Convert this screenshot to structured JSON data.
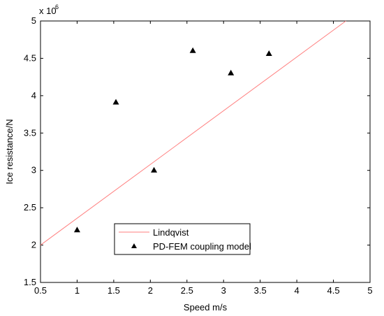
{
  "chart_data": {
    "type": "scatter",
    "title": "",
    "xlabel": "Speed m/s",
    "ylabel": "Ice resistance/N",
    "y_multiplier_label": "x 10",
    "y_multiplier_exponent": "6",
    "xlim": [
      0.5,
      5
    ],
    "ylim": [
      1.5,
      5
    ],
    "x_ticks": [
      0.5,
      1,
      1.5,
      2,
      2.5,
      3,
      3.5,
      4,
      4.5,
      5
    ],
    "x_tick_labels": [
      "0.5",
      "1",
      "1.5",
      "2",
      "2.5",
      "3",
      "3.5",
      "4",
      "4.5",
      "5"
    ],
    "y_ticks": [
      1.5,
      2,
      2.5,
      3,
      3.5,
      4,
      4.5,
      5
    ],
    "y_tick_labels": [
      "1.5",
      "2",
      "2.5",
      "3",
      "3.5",
      "4",
      "4.5",
      "5"
    ],
    "grid": false,
    "legend_position": "bottom-center",
    "series": [
      {
        "name": "Lindqvist",
        "kind": "line",
        "color": "#ff7f7f",
        "x": [
          0.5,
          4.67
        ],
        "y": [
          2.0,
          5.0
        ]
      },
      {
        "name": "PD-FEM coupling model",
        "kind": "markers",
        "marker": "triangle",
        "color": "#000000",
        "x": [
          1.0,
          1.53,
          2.05,
          2.58,
          3.1,
          3.62
        ],
        "y": [
          2.2,
          3.91,
          3.0,
          4.6,
          4.3,
          4.56
        ]
      }
    ]
  }
}
